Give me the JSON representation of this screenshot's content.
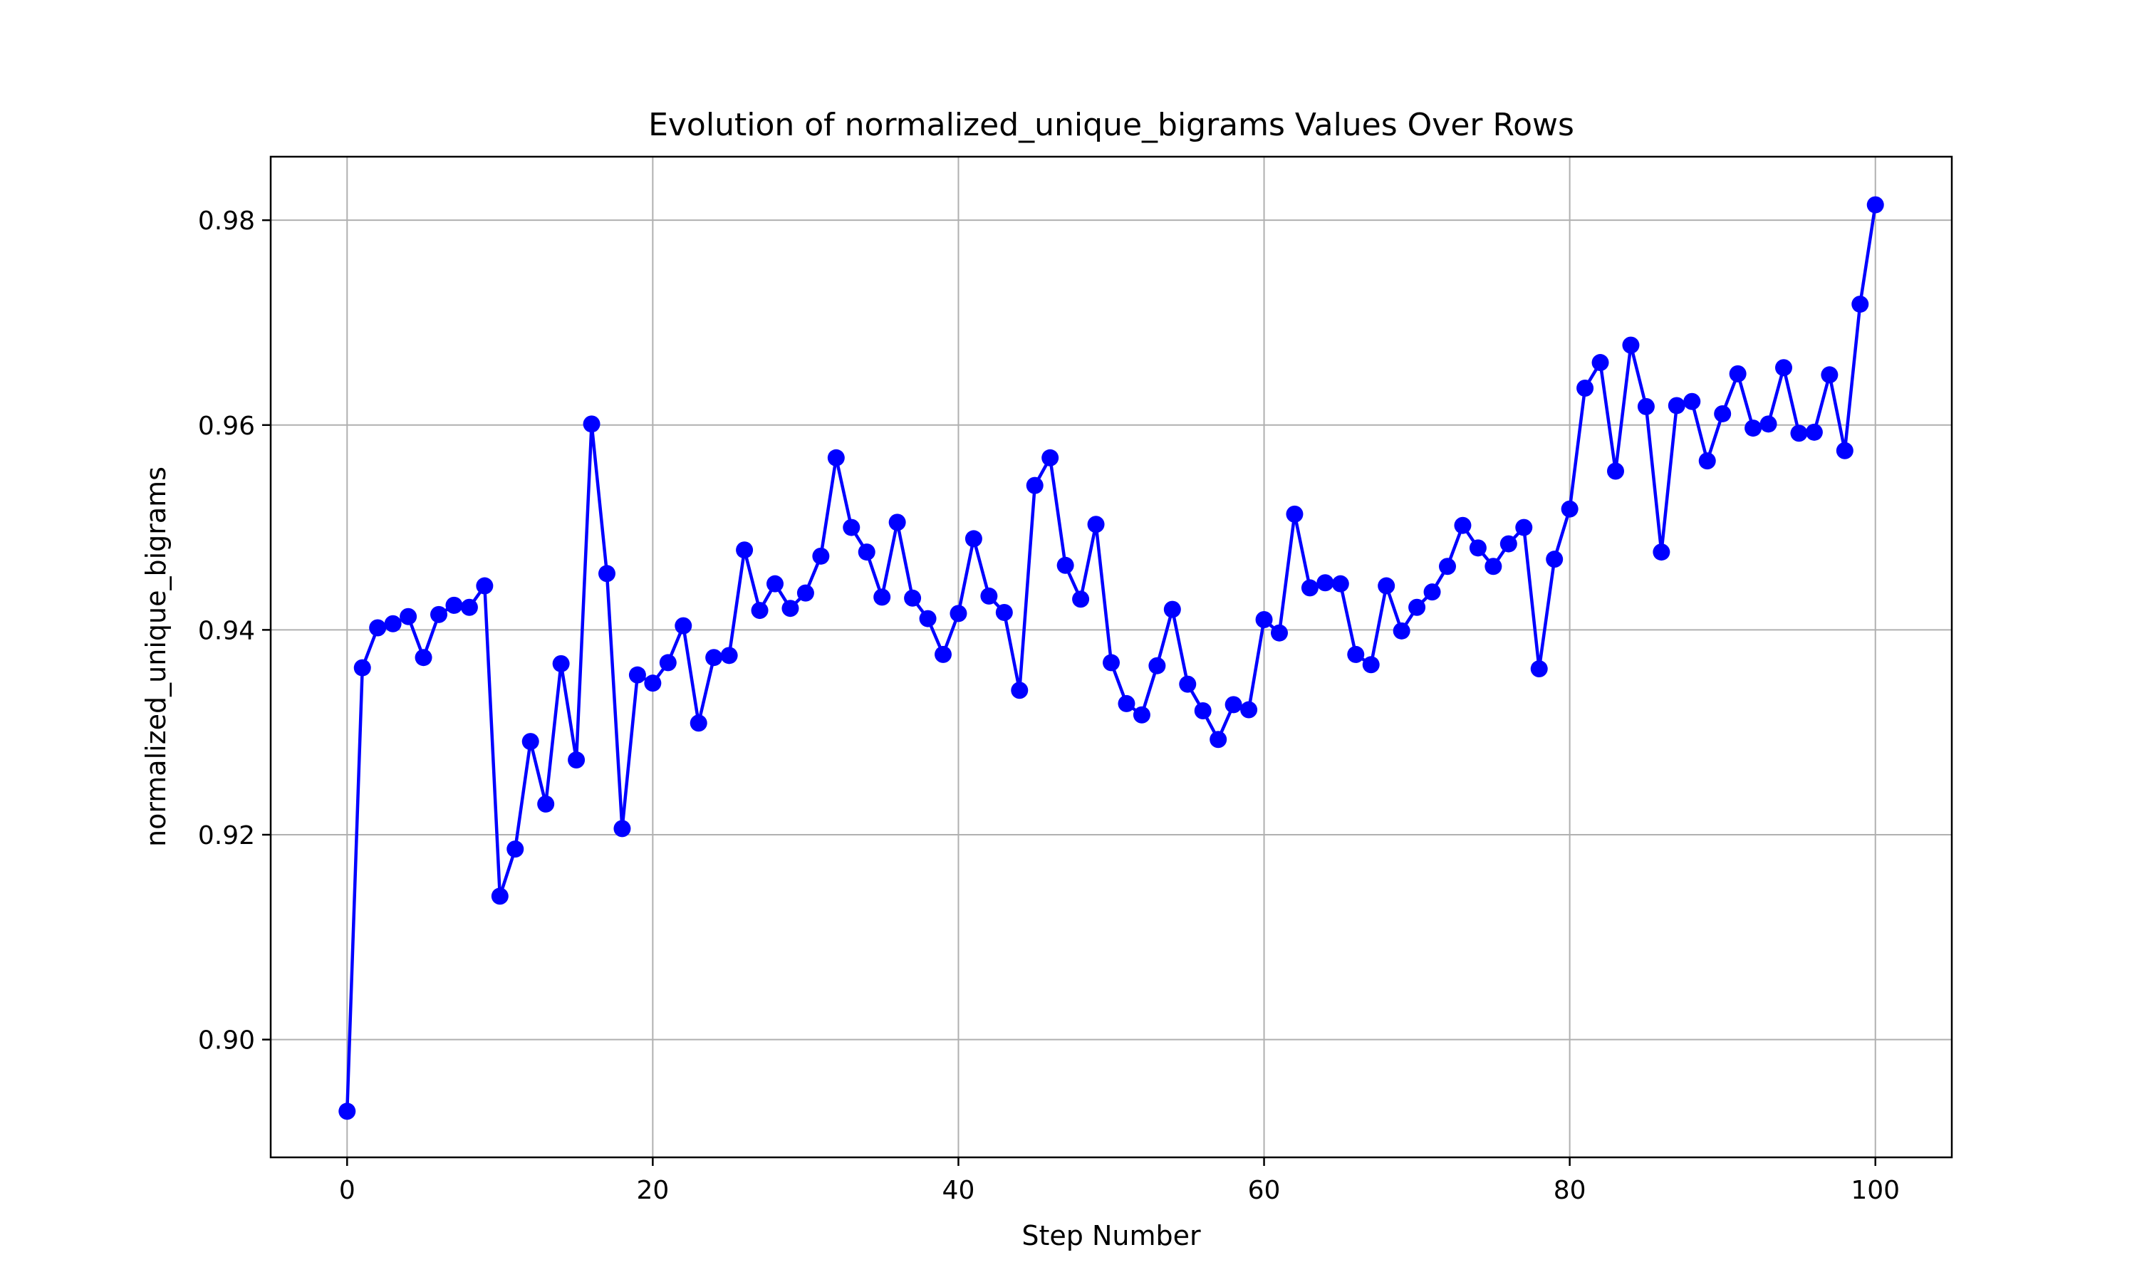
{
  "chart_data": {
    "type": "line",
    "title": "Evolution of normalized_unique_bigrams Values Over Rows",
    "xlabel": "Step Number",
    "ylabel": "normalized_unique_bigrams",
    "xlim": [
      -5,
      105
    ],
    "ylim": [
      0.8885,
      0.9862
    ],
    "xticks": [
      0,
      20,
      40,
      60,
      80,
      100
    ],
    "yticks": [
      0.9,
      0.92,
      0.94,
      0.96,
      0.98
    ],
    "xtick_labels": [
      "0",
      "20",
      "40",
      "60",
      "80",
      "100"
    ],
    "ytick_labels": [
      "0.90",
      "0.92",
      "0.94",
      "0.96",
      "0.98"
    ],
    "grid": true,
    "legend": null,
    "color": "#0000ff",
    "marker": "circle",
    "series": [
      {
        "x": [
          0,
          1,
          2,
          3,
          4,
          5,
          6,
          7,
          8,
          9,
          10,
          11,
          12,
          13,
          14,
          15,
          16,
          17,
          18,
          19,
          20,
          21,
          22,
          23,
          24,
          25,
          26,
          27,
          28,
          29,
          30,
          31,
          32,
          33,
          34,
          35,
          36,
          37,
          38,
          39,
          40,
          41,
          42,
          43,
          44,
          45,
          46,
          47,
          48,
          49,
          50,
          51,
          52,
          53,
          54,
          55,
          56,
          57,
          58,
          59,
          60,
          61,
          62,
          63,
          64,
          65,
          66,
          67,
          68,
          69,
          70,
          71,
          72,
          73,
          74,
          75,
          76,
          77,
          78,
          79,
          80,
          81,
          82,
          83,
          84,
          85,
          86,
          87,
          88,
          89,
          90,
          91,
          92,
          93,
          94,
          95,
          96,
          97,
          98,
          99,
          100
        ],
        "values": [
          0.893,
          0.9363,
          0.9402,
          0.9406,
          0.9413,
          0.9373,
          0.9415,
          0.9424,
          0.9422,
          0.9443,
          0.914,
          0.9186,
          0.9291,
          0.923,
          0.9367,
          0.9273,
          0.9601,
          0.9455,
          0.9206,
          0.9356,
          0.9348,
          0.9368,
          0.9404,
          0.9309,
          0.9373,
          0.9375,
          0.9478,
          0.9419,
          0.9445,
          0.9421,
          0.9436,
          0.9472,
          0.9568,
          0.95,
          0.9476,
          0.9432,
          0.9505,
          0.9431,
          0.9411,
          0.9376,
          0.9416,
          0.9489,
          0.9433,
          0.9417,
          0.9341,
          0.9541,
          0.9568,
          0.9463,
          0.943,
          0.9503,
          0.9368,
          0.9328,
          0.9317,
          0.9365,
          0.942,
          0.9347,
          0.9321,
          0.9293,
          0.9327,
          0.9322,
          0.941,
          0.9397,
          0.9513,
          0.9441,
          0.9446,
          0.9445,
          0.9376,
          0.9366,
          0.9443,
          0.9399,
          0.9422,
          0.9437,
          0.9462,
          0.9502,
          0.948,
          0.9462,
          0.9484,
          0.95,
          0.9362,
          0.9469,
          0.9518,
          0.9636,
          0.9661,
          0.9555,
          0.9678,
          0.9618,
          0.9476,
          0.9619,
          0.9623,
          0.9565,
          0.9611,
          0.965,
          0.9597,
          0.9601,
          0.9656,
          0.9592,
          0.9593,
          0.9649,
          0.9575,
          0.9718,
          0.9815
        ]
      }
    ]
  }
}
